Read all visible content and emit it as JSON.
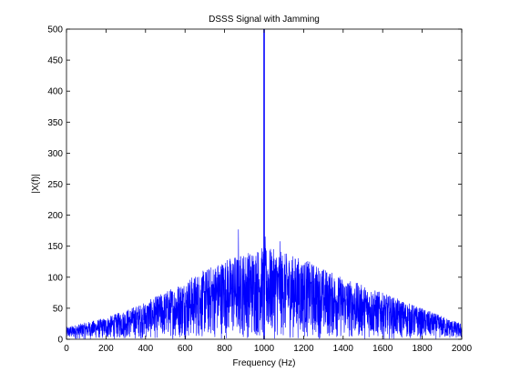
{
  "chart_data": {
    "type": "line",
    "title": "DSSS Signal with Jamming",
    "xlabel": "Frequency (Hz)",
    "ylabel": "|X(f)|",
    "xlim": [
      0,
      2000
    ],
    "ylim": [
      0,
      500
    ],
    "xticks": [
      0,
      200,
      400,
      600,
      800,
      1000,
      1200,
      1400,
      1600,
      1800,
      2000
    ],
    "yticks": [
      0,
      50,
      100,
      150,
      200,
      250,
      300,
      350,
      400,
      450,
      500
    ],
    "grid": false,
    "legend": "none",
    "line_color": "#0000ff",
    "spectrum_envelope": {
      "x": [
        0,
        200,
        400,
        600,
        800,
        1000,
        1200,
        1400,
        1600,
        1800,
        2000
      ],
      "y": [
        20,
        35,
        60,
        95,
        130,
        150,
        130,
        100,
        75,
        50,
        25
      ]
    },
    "jamming_tone": {
      "x": 1000,
      "y": 500
    },
    "labeled_peaks": [
      {
        "x": 870,
        "y": 177
      },
      {
        "x": 1005,
        "y": 165
      },
      {
        "x": 1080,
        "y": 158
      }
    ]
  }
}
